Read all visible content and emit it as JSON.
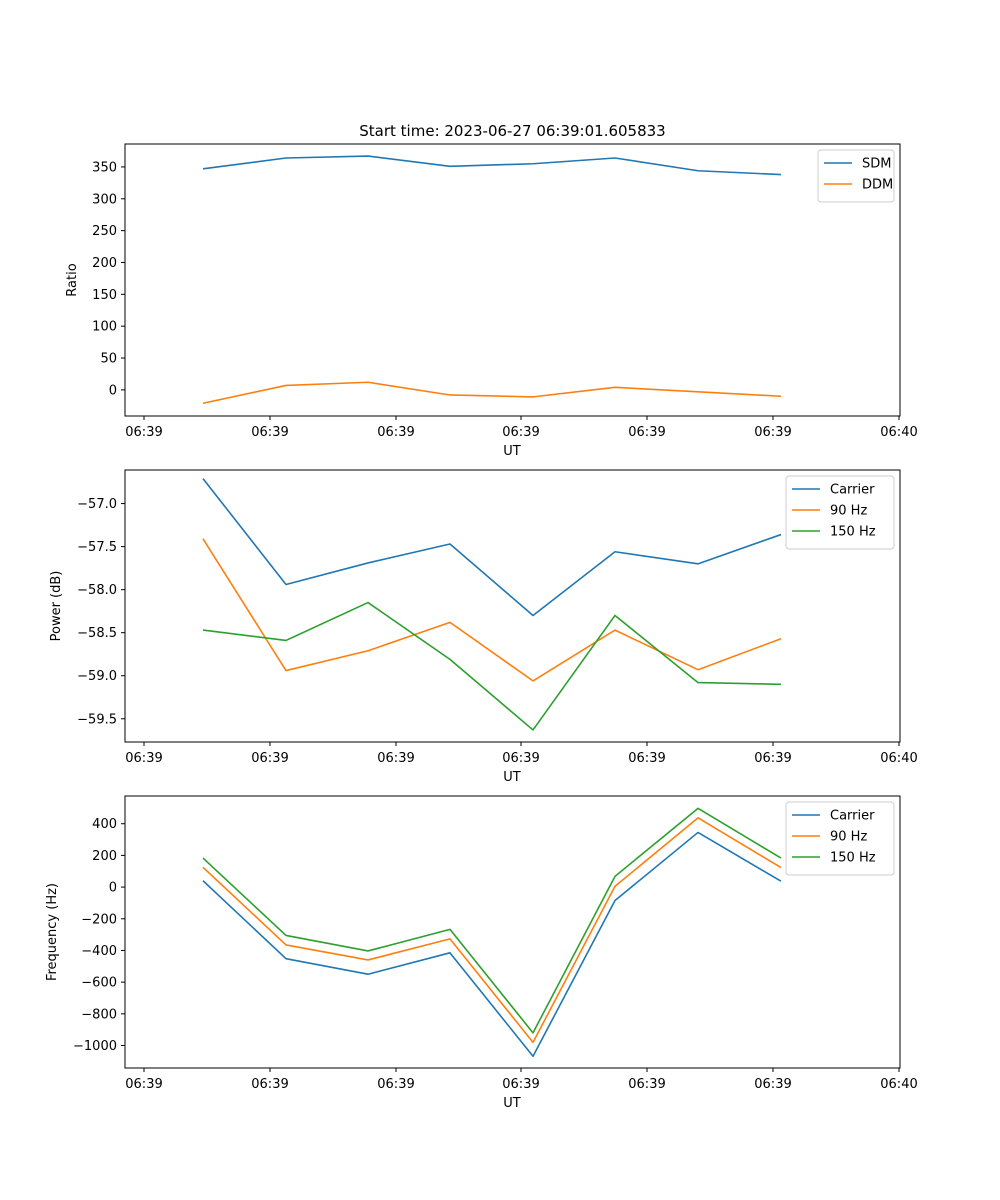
{
  "chart_data": [
    {
      "type": "line",
      "title": "Start time: 2023-06-27 06:39:01.605833",
      "xlabel": "UT",
      "ylabel": "Ratio",
      "xticks": [
        "06:39",
        "06:39",
        "06:39",
        "06:39",
        "06:39",
        "06:39",
        "06:40"
      ],
      "yticks": [
        0,
        50,
        100,
        150,
        200,
        250,
        300,
        350
      ],
      "ylim": [
        -41,
        386
      ],
      "legend": "top-right",
      "grid": false,
      "series": [
        {
          "name": "SDM",
          "color": "#1f77b4",
          "values": [
            347,
            364,
            367,
            351,
            355,
            364,
            344,
            338
          ]
        },
        {
          "name": "DDM",
          "color": "#ff7f0e",
          "values": [
            -21,
            7,
            12,
            -8,
            -11,
            4,
            -3,
            -10
          ]
        }
      ]
    },
    {
      "type": "line",
      "title": "",
      "xlabel": "UT",
      "ylabel": "Power (dB)",
      "xticks": [
        "06:39",
        "06:39",
        "06:39",
        "06:39",
        "06:39",
        "06:39",
        "06:40"
      ],
      "yticks": [
        -59.5,
        -59.0,
        -58.5,
        -58.0,
        -57.5,
        -57.0
      ],
      "ytick_labels": [
        "−59.5",
        "−59.0",
        "−58.5",
        "−58.0",
        "−57.5",
        "−57.0"
      ],
      "ylim": [
        -59.77,
        -56.61
      ],
      "legend": "top-right",
      "grid": false,
      "series": [
        {
          "name": "Carrier",
          "color": "#1f77b4",
          "values": [
            -56.71,
            -57.94,
            -57.69,
            -57.47,
            -58.3,
            -57.56,
            -57.7,
            -57.36
          ]
        },
        {
          "name": "90 Hz",
          "color": "#ff7f0e",
          "values": [
            -57.41,
            -58.94,
            -58.71,
            -58.38,
            -59.06,
            -58.47,
            -58.93,
            -58.57
          ]
        },
        {
          "name": "150 Hz",
          "color": "#2ca02c",
          "values": [
            -58.47,
            -58.59,
            -58.15,
            -58.81,
            -59.63,
            -58.3,
            -59.08,
            -59.1
          ]
        }
      ]
    },
    {
      "type": "line",
      "title": "",
      "xlabel": "UT",
      "ylabel": "Frequency (Hz)",
      "xticks": [
        "06:39",
        "06:39",
        "06:39",
        "06:39",
        "06:39",
        "06:39",
        "06:40"
      ],
      "yticks": [
        -1000,
        -800,
        -600,
        -400,
        -200,
        0,
        200,
        400
      ],
      "ytick_labels": [
        "−1000",
        "−800",
        "−600",
        "−400",
        "−200",
        "0",
        "200",
        "400"
      ],
      "ylim": [
        -1142,
        575
      ],
      "legend": "top-right",
      "grid": false,
      "series": [
        {
          "name": "Carrier",
          "color": "#1f77b4",
          "values": [
            40,
            -452,
            -550,
            -415,
            -1068,
            -85,
            345,
            37
          ]
        },
        {
          "name": "90 Hz",
          "color": "#ff7f0e",
          "values": [
            125,
            -365,
            -460,
            -327,
            -980,
            5,
            437,
            123
          ]
        },
        {
          "name": "150 Hz",
          "color": "#2ca02c",
          "values": [
            183,
            -305,
            -403,
            -267,
            -920,
            68,
            497,
            183
          ]
        }
      ]
    }
  ]
}
